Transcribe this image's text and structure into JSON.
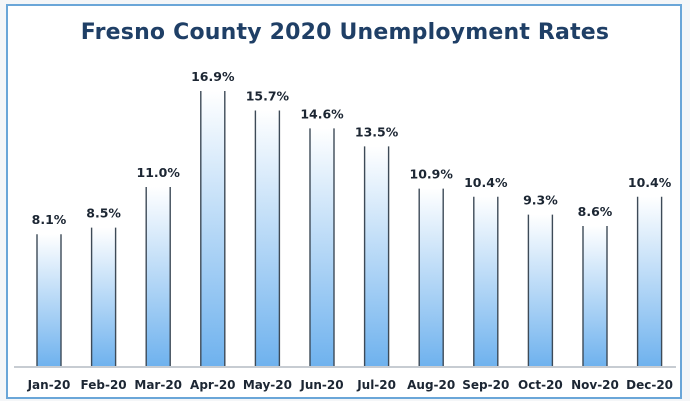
{
  "colors": {
    "bar_top": "#ffffff",
    "bar_bottom": "#6fb2ee",
    "bar_edge": "#3d4a57",
    "title": "#1f3f66",
    "frame": "#6aa6d8"
  },
  "chart_data": {
    "type": "bar",
    "title": "Fresno County 2020 Unemployment Rates",
    "categories": [
      "Jan-20",
      "Feb-20",
      "Mar-20",
      "Apr-20",
      "May-20",
      "Jun-20",
      "Jul-20",
      "Aug-20",
      "Sep-20",
      "Oct-20",
      "Nov-20",
      "Dec-20"
    ],
    "values": [
      8.1,
      8.5,
      11.0,
      16.9,
      15.7,
      14.6,
      13.5,
      10.9,
      10.4,
      9.3,
      8.6,
      10.4
    ],
    "data_labels": [
      "8.1%",
      "8.5%",
      "11.0%",
      "16.9%",
      "15.7%",
      "14.6%",
      "13.5%",
      "10.9%",
      "10.4%",
      "9.3%",
      "8.6%",
      "10.4%"
    ],
    "ylim": [
      0,
      16.9
    ],
    "grid": false,
    "legend": "none"
  }
}
